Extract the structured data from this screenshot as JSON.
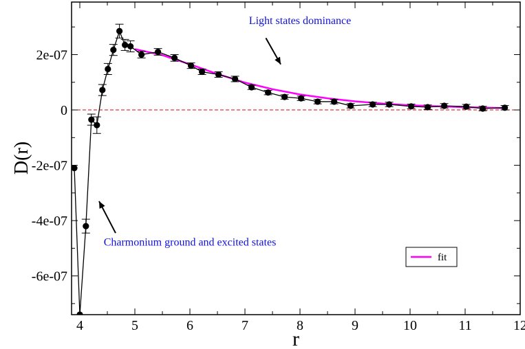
{
  "chart_data": {
    "type": "line",
    "xlabel": "r",
    "ylabel": "D(r)",
    "xlim": [
      3.85,
      12
    ],
    "ylim": [
      -7.4e-07,
      3.9e-07
    ],
    "x_ticks": [
      4,
      5,
      6,
      7,
      8,
      9,
      10,
      11,
      12
    ],
    "x_tick_labels": [
      "4",
      "5",
      "6",
      "7",
      "8",
      "9",
      "10",
      "11",
      "12"
    ],
    "y_ticks": [
      2e-07,
      0,
      -2e-07,
      -4e-07,
      -6e-07
    ],
    "y_tick_labels": [
      "2e-07",
      "0",
      "-2e-07",
      "-4e-07",
      "-6e-07"
    ],
    "grid": false,
    "legend_position": "bottom-right",
    "zero_line": {
      "y": 0,
      "color": "#e00000",
      "style": "dashed"
    },
    "series": [
      {
        "kind": "data",
        "color": "#000000",
        "points": [
          {
            "x": 3.9,
            "y": -2.1e-07,
            "err": 0
          },
          {
            "x": 4.0,
            "y": -7.4e-07,
            "err": 0
          },
          {
            "x": 4.11,
            "y": -4.2e-07,
            "err": 2.5e-08
          },
          {
            "x": 4.21,
            "y": -3.5e-08,
            "err": 2e-08
          },
          {
            "x": 4.31,
            "y": -5.5e-08,
            "err": 3e-08
          },
          {
            "x": 4.41,
            "y": 7.2e-08,
            "err": 2e-08
          },
          {
            "x": 4.51,
            "y": 1.48e-07,
            "err": 2e-08
          },
          {
            "x": 4.61,
            "y": 2.17e-07,
            "err": 2e-08
          },
          {
            "x": 4.72,
            "y": 2.85e-07,
            "err": 2.5e-08
          },
          {
            "x": 4.82,
            "y": 2.35e-07,
            "err": 2e-08
          },
          {
            "x": 4.92,
            "y": 2.3e-07,
            "err": 2e-08
          },
          {
            "x": 5.12,
            "y": 2e-07,
            "err": 1.2e-08
          },
          {
            "x": 5.42,
            "y": 2.1e-07,
            "err": 1.2e-08
          },
          {
            "x": 5.72,
            "y": 1.88e-07,
            "err": 1.2e-08
          },
          {
            "x": 6.02,
            "y": 1.6e-07,
            "err": 1e-08
          },
          {
            "x": 6.22,
            "y": 1.38e-07,
            "err": 1e-08
          },
          {
            "x": 6.52,
            "y": 1.28e-07,
            "err": 1e-08
          },
          {
            "x": 6.82,
            "y": 1.12e-07,
            "err": 1e-08
          },
          {
            "x": 7.12,
            "y": 8.2e-08,
            "err": 8e-09
          },
          {
            "x": 7.42,
            "y": 6.3e-08,
            "err": 8e-09
          },
          {
            "x": 7.72,
            "y": 4.7e-08,
            "err": 8e-09
          },
          {
            "x": 8.02,
            "y": 4.2e-08,
            "err": 8e-09
          },
          {
            "x": 8.32,
            "y": 3e-08,
            "err": 8e-09
          },
          {
            "x": 8.62,
            "y": 3e-08,
            "err": 8e-09
          },
          {
            "x": 8.92,
            "y": 1.5e-08,
            "err": 8e-09
          },
          {
            "x": 9.32,
            "y": 2e-08,
            "err": 8e-09
          },
          {
            "x": 9.62,
            "y": 2e-08,
            "err": 8e-09
          },
          {
            "x": 10.02,
            "y": 1.3e-08,
            "err": 8e-09
          },
          {
            "x": 10.32,
            "y": 1e-08,
            "err": 8e-09
          },
          {
            "x": 10.62,
            "y": 1.5e-08,
            "err": 8e-09
          },
          {
            "x": 11.02,
            "y": 1.2e-08,
            "err": 8e-09
          },
          {
            "x": 11.32,
            "y": 5e-09,
            "err": 8e-09
          },
          {
            "x": 11.72,
            "y": 8e-09,
            "err": 8e-09
          }
        ]
      },
      {
        "name": "fit",
        "kind": "fit",
        "color": "#ff00ff",
        "points": [
          {
            "x": 5.0,
            "y": 2.2e-07
          },
          {
            "x": 5.5,
            "y": 1.98e-07
          },
          {
            "x": 6.0,
            "y": 1.65e-07
          },
          {
            "x": 6.5,
            "y": 1.3e-07
          },
          {
            "x": 7.0,
            "y": 9.9e-08
          },
          {
            "x": 7.5,
            "y": 7.5e-08
          },
          {
            "x": 8.0,
            "y": 5.6e-08
          },
          {
            "x": 8.5,
            "y": 4.2e-08
          },
          {
            "x": 9.0,
            "y": 3.1e-08
          },
          {
            "x": 9.5,
            "y": 2.3e-08
          },
          {
            "x": 10.0,
            "y": 1.7e-08
          },
          {
            "x": 10.5,
            "y": 1.3e-08
          },
          {
            "x": 11.0,
            "y": 1e-08
          },
          {
            "x": 11.5,
            "y": 8e-09
          },
          {
            "x": 11.7,
            "y": 7e-09
          }
        ]
      }
    ],
    "annotations": [
      {
        "text": "Light states dominance",
        "x": 8.0,
        "y": 3.1e-07,
        "color": "#1010e0"
      },
      {
        "text": "Charmonium  ground and  excited states",
        "x": 6.0,
        "y": -4.9e-07,
        "color": "#1010e0"
      }
    ],
    "arrows": [
      {
        "from": [
          7.38,
          2.6e-07
        ],
        "to": [
          7.65,
          1.65e-07
        ]
      },
      {
        "from": [
          4.65,
          -4.45e-07
        ],
        "to": [
          4.35,
          -3.3e-07
        ]
      }
    ]
  }
}
